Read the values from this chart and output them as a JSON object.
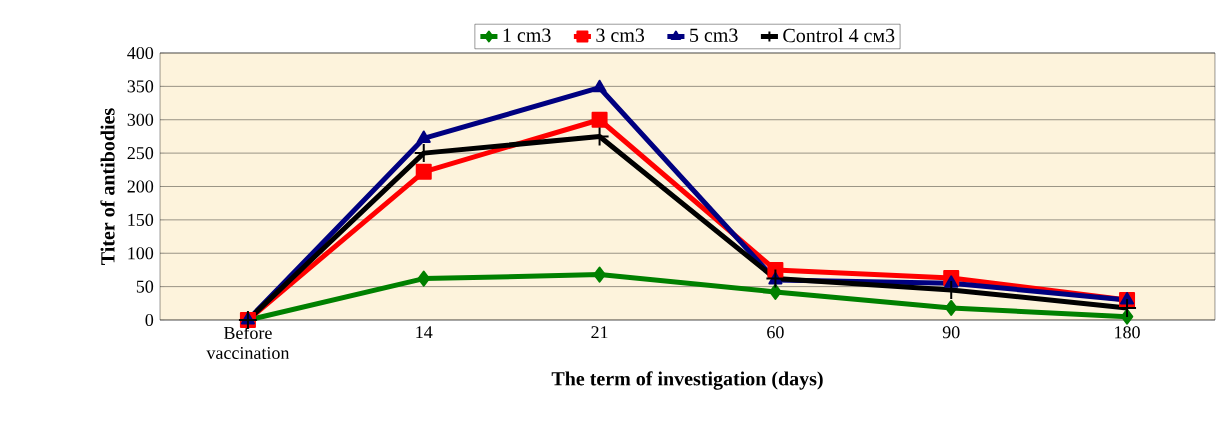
{
  "chart_data": {
    "type": "line",
    "xlabel": "The term of investigation (days)",
    "ylabel": "Titer of antibodies",
    "categories": [
      "Before vaccination",
      "14",
      "21",
      "60",
      "90",
      "180"
    ],
    "series": [
      {
        "name": "1 cm3",
        "color": "#008000",
        "marker": "diamond",
        "values": [
          0,
          62,
          68,
          42,
          18,
          5
        ]
      },
      {
        "name": "3 cm3",
        "color": "#ff0000",
        "marker": "square",
        "values": [
          0,
          222,
          300,
          75,
          63,
          30
        ]
      },
      {
        "name": "5 cm3",
        "color": "#000080",
        "marker": "triangle",
        "values": [
          0,
          272,
          348,
          60,
          55,
          30
        ]
      },
      {
        "name": "Control  4 см3",
        "color": "#000000",
        "marker": "cross",
        "values": [
          0,
          250,
          275,
          62,
          45,
          18
        ]
      }
    ],
    "ylim": [
      0,
      400
    ],
    "yticks": [
      0,
      50,
      100,
      150,
      200,
      250,
      300,
      350,
      400
    ],
    "grid": "y",
    "legend": "top",
    "line_style": "solid"
  }
}
